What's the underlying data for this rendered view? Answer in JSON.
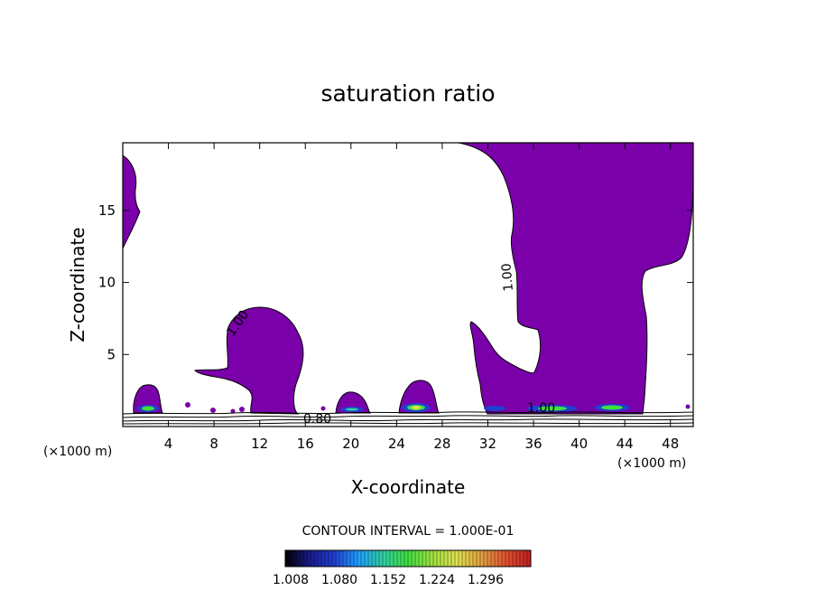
{
  "chart_data": {
    "type": "filled-contour",
    "title": "saturation ratio",
    "xlabel": "X-coordinate",
    "ylabel": "Z-coordinate",
    "x_unit_left": "(×1000 m)",
    "x_unit_right": "(×1000 m)",
    "xlim": [
      0,
      50
    ],
    "ylim": [
      0,
      19.7
    ],
    "x_ticks": [
      4,
      8,
      12,
      16,
      20,
      24,
      28,
      32,
      36,
      40,
      44,
      48
    ],
    "y_ticks": [
      5,
      10,
      15
    ],
    "contour_interval_text": "CONTOUR INTERVAL = 1.000E-01",
    "contour_labels": [
      "1.00",
      "1.00",
      "0.80",
      "1.00"
    ],
    "colorbar": {
      "tick_labels": [
        "1.008",
        "1.080",
        "1.152",
        "1.224",
        "1.296"
      ],
      "colors": [
        "#000000",
        "#1a1a8c",
        "#2040d0",
        "#20a0ff",
        "#30d0a0",
        "#40e040",
        "#a0e040",
        "#e0e050",
        "#e0a040",
        "#e05030",
        "#c02020"
      ]
    },
    "fill_color": "#7a00aa",
    "supersaturated_regions": [
      {
        "name": "left-edge-cloud",
        "x": [
          0,
          1.6
        ],
        "z": [
          12.5,
          19
        ]
      },
      {
        "name": "cloud-12km",
        "x": [
          6.5,
          15.5
        ],
        "z": [
          0.8,
          8.3
        ]
      },
      {
        "name": "tall-cloud-35-50km",
        "x": [
          29.5,
          50
        ],
        "z": [
          0.8,
          19.7
        ]
      },
      {
        "name": "small-cell-3km",
        "x": [
          1,
          3.3
        ],
        "z": [
          0.8,
          3
        ]
      },
      {
        "name": "small-cell-20km",
        "x": [
          18.5,
          21.5
        ],
        "z": [
          0.8,
          2.4
        ]
      },
      {
        "name": "small-cell-26km",
        "x": [
          24.5,
          28
        ],
        "z": [
          0.8,
          3.2
        ]
      }
    ]
  }
}
